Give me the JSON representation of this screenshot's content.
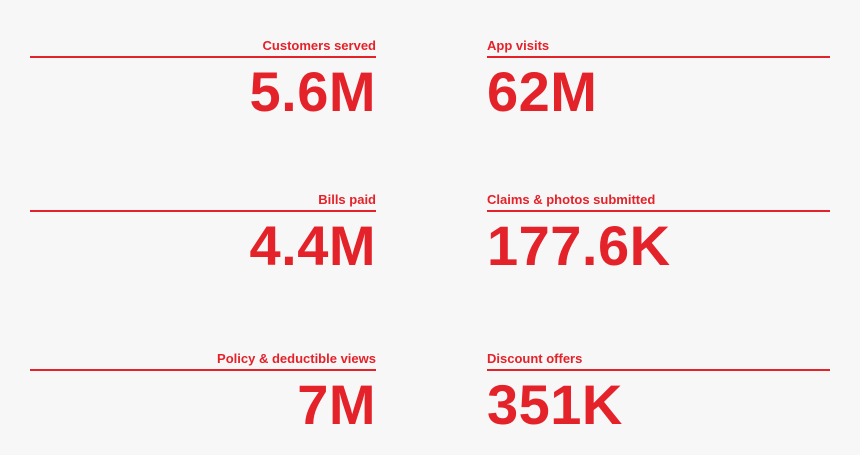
{
  "stats": [
    {
      "label": "Customers served",
      "value": "5.6M"
    },
    {
      "label": "App visits",
      "value": "62M"
    },
    {
      "label": "Bills paid",
      "value": "4.4M"
    },
    {
      "label": "Claims & photos submitted",
      "value": "177.6K"
    },
    {
      "label": "Policy & deductible views",
      "value": "7M"
    },
    {
      "label": "Discount offers",
      "value": "351K"
    }
  ]
}
